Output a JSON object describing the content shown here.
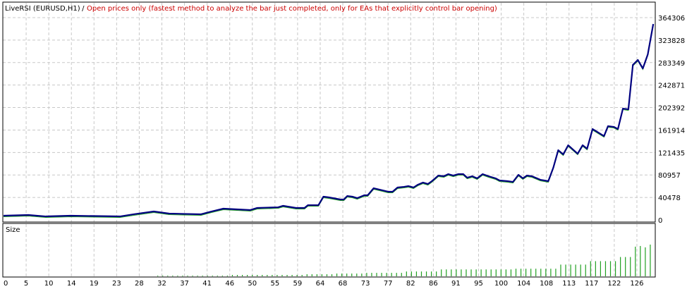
{
  "header": {
    "expert": "LiveRSI (EURUSD,H1)",
    "separator": " / ",
    "model": "Open prices only (fastest method to analyze the bar just completed, only for EAs that explicitly control bar opening)"
  },
  "colors": {
    "balance": "#000080",
    "equity": "#20a020",
    "size_bars": "#20a020",
    "model_text": "#cc0000",
    "grid": "#c8c8c8"
  },
  "chart_data": [
    {
      "type": "line",
      "ylim": [
        0,
        364306
      ],
      "yticks": [
        "0",
        "40478",
        "80957",
        "121435",
        "161914",
        "202392",
        "242871",
        "283349",
        "323828",
        "364306"
      ],
      "xticks": [
        "0",
        "5",
        "10",
        "14",
        "19",
        "23",
        "28",
        "32",
        "37",
        "41",
        "46",
        "50",
        "55",
        "59",
        "64",
        "68",
        "73",
        "77",
        "82",
        "86",
        "91",
        "95",
        "100",
        "104",
        "108",
        "113",
        "117",
        "122",
        "126"
      ],
      "xlim": [
        0,
        131
      ],
      "grid": true,
      "series": [
        {
          "points": [
            [
              0,
              7600
            ],
            [
              5,
              8900
            ],
            [
              8.5,
              6300
            ],
            [
              13.5,
              7600
            ],
            [
              23.4,
              6300
            ],
            [
              26.2,
              10200
            ],
            [
              30.2,
              15200
            ],
            [
              33.3,
              11400
            ],
            [
              39.7,
              10200
            ],
            [
              41.8,
              15200
            ],
            [
              44.2,
              20300
            ],
            [
              49.6,
              17800
            ],
            [
              51,
              21600
            ],
            [
              55.2,
              22800
            ],
            [
              56.2,
              25400
            ],
            [
              58.8,
              21600
            ],
            [
              60.5,
              21600
            ],
            [
              61.2,
              26600
            ],
            [
              63.3,
              26600
            ],
            [
              64.3,
              41900
            ],
            [
              65.4,
              40600
            ],
            [
              67.7,
              36800
            ],
            [
              68.4,
              36800
            ],
            [
              69.1,
              43100
            ],
            [
              70.1,
              41900
            ],
            [
              71.1,
              39300
            ],
            [
              72.5,
              44400
            ],
            [
              73.2,
              44400
            ],
            [
              74.4,
              57100
            ],
            [
              76.2,
              53300
            ],
            [
              77.3,
              50800
            ],
            [
              78.2,
              50800
            ],
            [
              79.2,
              58400
            ],
            [
              80.5,
              59600
            ],
            [
              81.4,
              60900
            ],
            [
              82.4,
              58400
            ],
            [
              83.3,
              63500
            ],
            [
              84.3,
              67300
            ],
            [
              85.3,
              64700
            ],
            [
              86.1,
              69800
            ],
            [
              87.4,
              79900
            ],
            [
              88.5,
              78700
            ],
            [
              89.4,
              82500
            ],
            [
              90.4,
              79900
            ],
            [
              91.4,
              82500
            ],
            [
              92.4,
              82500
            ],
            [
              93.2,
              76100
            ],
            [
              94.2,
              78700
            ],
            [
              95.2,
              74900
            ],
            [
              96.3,
              82500
            ],
            [
              97.5,
              78700
            ],
            [
              98.9,
              74900
            ],
            [
              99.7,
              71100
            ],
            [
              101.3,
              69800
            ],
            [
              102.4,
              68500
            ],
            [
              103.5,
              81200
            ],
            [
              104.4,
              74900
            ],
            [
              105.2,
              79900
            ],
            [
              106.2,
              78700
            ],
            [
              107.9,
              72300
            ],
            [
              109.5,
              69800
            ],
            [
              110.5,
              93900
            ],
            [
              111.5,
              125600
            ],
            [
              112.5,
              118000
            ],
            [
              113.5,
              134500
            ],
            [
              115.4,
              119300
            ],
            [
              116.4,
              134500
            ],
            [
              117.3,
              128200
            ],
            [
              118.4,
              163700
            ],
            [
              120.7,
              151000
            ],
            [
              121.5,
              168800
            ],
            [
              122.7,
              167500
            ],
            [
              123.5,
              163700
            ],
            [
              124.5,
              200500
            ],
            [
              125.6,
              199200
            ],
            [
              126.5,
              279200
            ],
            [
              127.5,
              288100
            ],
            [
              128.5,
              272800
            ],
            [
              129.5,
              298200
            ],
            [
              130.6,
              352800
            ]
          ]
        }
      ]
    },
    {
      "type": "bar",
      "title": "Size",
      "values": [
        0,
        0,
        0,
        0,
        0,
        0,
        0,
        0,
        0,
        0,
        0,
        0,
        0,
        0,
        0,
        0,
        0,
        0,
        0,
        0,
        0,
        0,
        0,
        0,
        0,
        0,
        0,
        0,
        0,
        0,
        0,
        0.1,
        0.1,
        0.1,
        0.1,
        0.1,
        0.1,
        0.1,
        0.1,
        0.1,
        0.1,
        0.1,
        0.1,
        0.1,
        0.1,
        0.1,
        0.2,
        0.2,
        0.2,
        0.2,
        0.2,
        0.2,
        0.2,
        0.2,
        0.2,
        0.2,
        0.2,
        0.2,
        0.2,
        0.2,
        0.2,
        0.3,
        0.3,
        0.3,
        0.3,
        0.3,
        0.3,
        0.4,
        0.4,
        0.4,
        0.4,
        0.4,
        0.4,
        0.5,
        0.5,
        0.5,
        0.5,
        0.5,
        0.5,
        0.5,
        0.5,
        0.7,
        0.7,
        0.7,
        0.7,
        0.7,
        0.7,
        0.7,
        1.0,
        1.0,
        1.0,
        1.0,
        1.0,
        1.0,
        1.0,
        1.0,
        1.0,
        1.0,
        1.0,
        1.0,
        1.0,
        1.0,
        1.0,
        1.1,
        1.1,
        1.1,
        1.1,
        1.1,
        1.1,
        1.1,
        1.1,
        1.1,
        1.7,
        1.7,
        1.7,
        1.7,
        1.7,
        1.7,
        2.2,
        2.2,
        2.2,
        2.2,
        2.2,
        2.2,
        2.8,
        2.8,
        2.8,
        4.3,
        4.4,
        4.2,
        4.6
      ]
    }
  ]
}
